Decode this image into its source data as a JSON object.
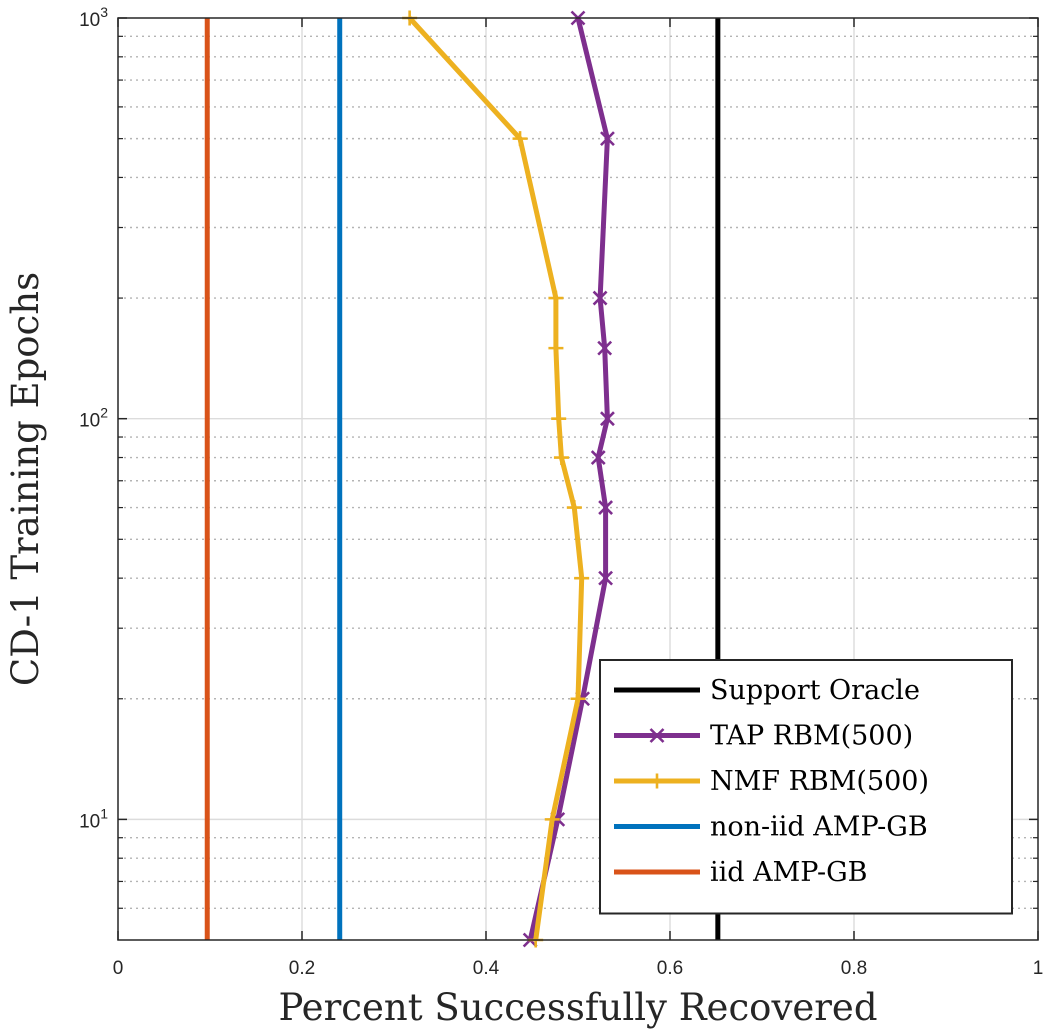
{
  "chart_data": {
    "type": "line",
    "title": "",
    "xlabel": "Percent Successfully Recovered",
    "ylabel": "CD-1 Training Epochs",
    "xlim": [
      0,
      1
    ],
    "ylim": [
      5,
      1000
    ],
    "yscale": "log",
    "grid": true,
    "x_ticks": [
      "0",
      "0.2",
      "0.4",
      "0.6",
      "0.8",
      "1"
    ],
    "y_ticks": [
      {
        "base": "10",
        "exp": "1",
        "value": 10
      },
      {
        "base": "10",
        "exp": "2",
        "value": 100
      },
      {
        "base": "10",
        "exp": "3",
        "value": 1000
      }
    ],
    "legend_position": "bottom-right",
    "series": [
      {
        "name": "Support Oracle",
        "color": "#000000",
        "marker": "none",
        "kind": "vertical",
        "x": 0.652
      },
      {
        "name": "TAP RBM(500)",
        "color": "#7e2f8e",
        "marker": "x",
        "points": [
          [
            0.448,
            5
          ],
          [
            0.478,
            10
          ],
          [
            0.505,
            20
          ],
          [
            0.53,
            40
          ],
          [
            0.53,
            60
          ],
          [
            0.522,
            80
          ],
          [
            0.532,
            100
          ],
          [
            0.529,
            150
          ],
          [
            0.524,
            200
          ],
          [
            0.532,
            500
          ],
          [
            0.5,
            1000
          ]
        ]
      },
      {
        "name": "NMF RBM(500)",
        "color": "#edb120",
        "marker": "+",
        "points": [
          [
            0.454,
            5
          ],
          [
            0.472,
            10
          ],
          [
            0.5,
            20
          ],
          [
            0.504,
            40
          ],
          [
            0.496,
            60
          ],
          [
            0.482,
            80
          ],
          [
            0.479,
            100
          ],
          [
            0.476,
            150
          ],
          [
            0.476,
            200
          ],
          [
            0.437,
            500
          ],
          [
            0.317,
            1000
          ]
        ]
      },
      {
        "name": "non-iid AMP-GB",
        "color": "#0072bd",
        "marker": "none",
        "kind": "vertical",
        "x": 0.241
      },
      {
        "name": "iid AMP-GB",
        "color": "#d95319",
        "marker": "none",
        "kind": "vertical",
        "x": 0.097
      }
    ]
  }
}
